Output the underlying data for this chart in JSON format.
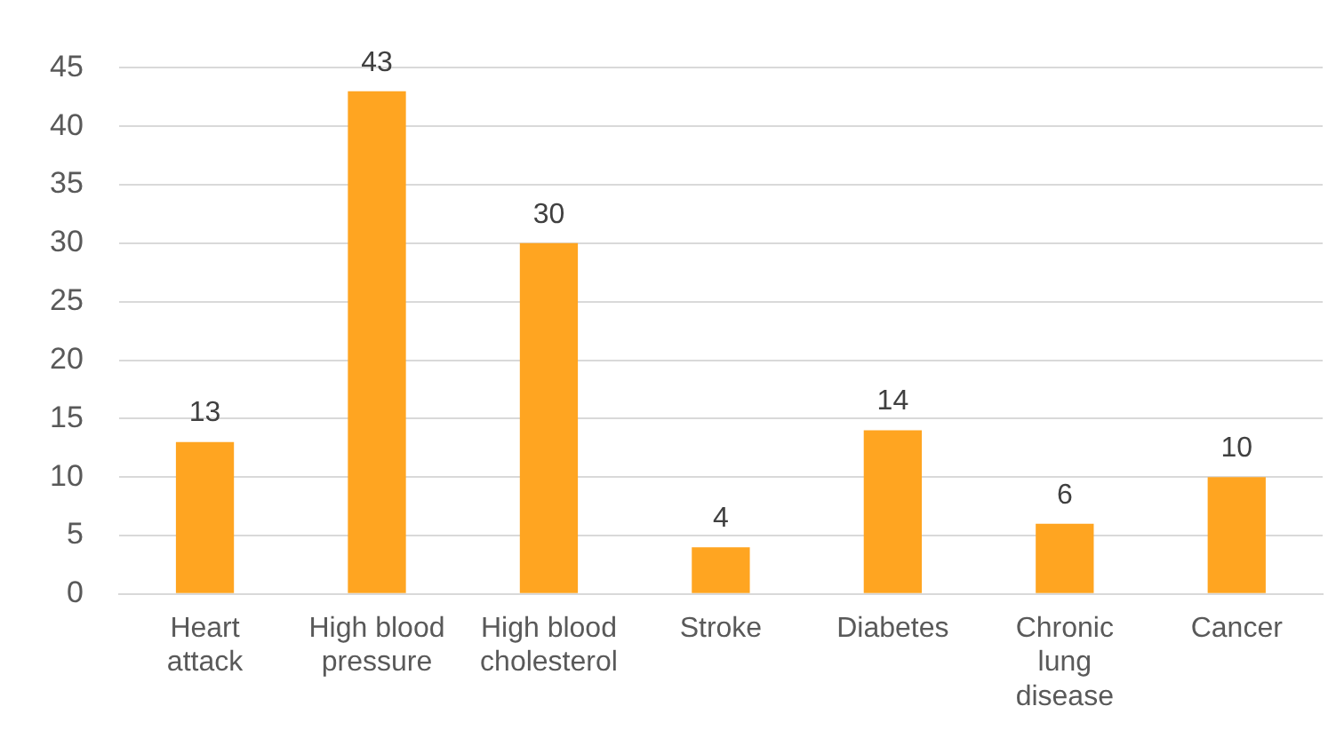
{
  "chart_data": {
    "type": "bar",
    "categories": [
      "Heart attack",
      "High blood pressure",
      "High blood cholesterol",
      "Stroke",
      "Diabetes",
      "Chronic lung disease",
      "Cancer"
    ],
    "values": [
      13,
      43,
      30,
      4,
      14,
      6,
      10
    ],
    "color": "#ffa521",
    "ylim": [
      0,
      45
    ],
    "yticks": [
      0,
      5,
      10,
      15,
      20,
      25,
      30,
      35,
      40,
      45
    ],
    "grid": "y",
    "data_labels": true
  }
}
